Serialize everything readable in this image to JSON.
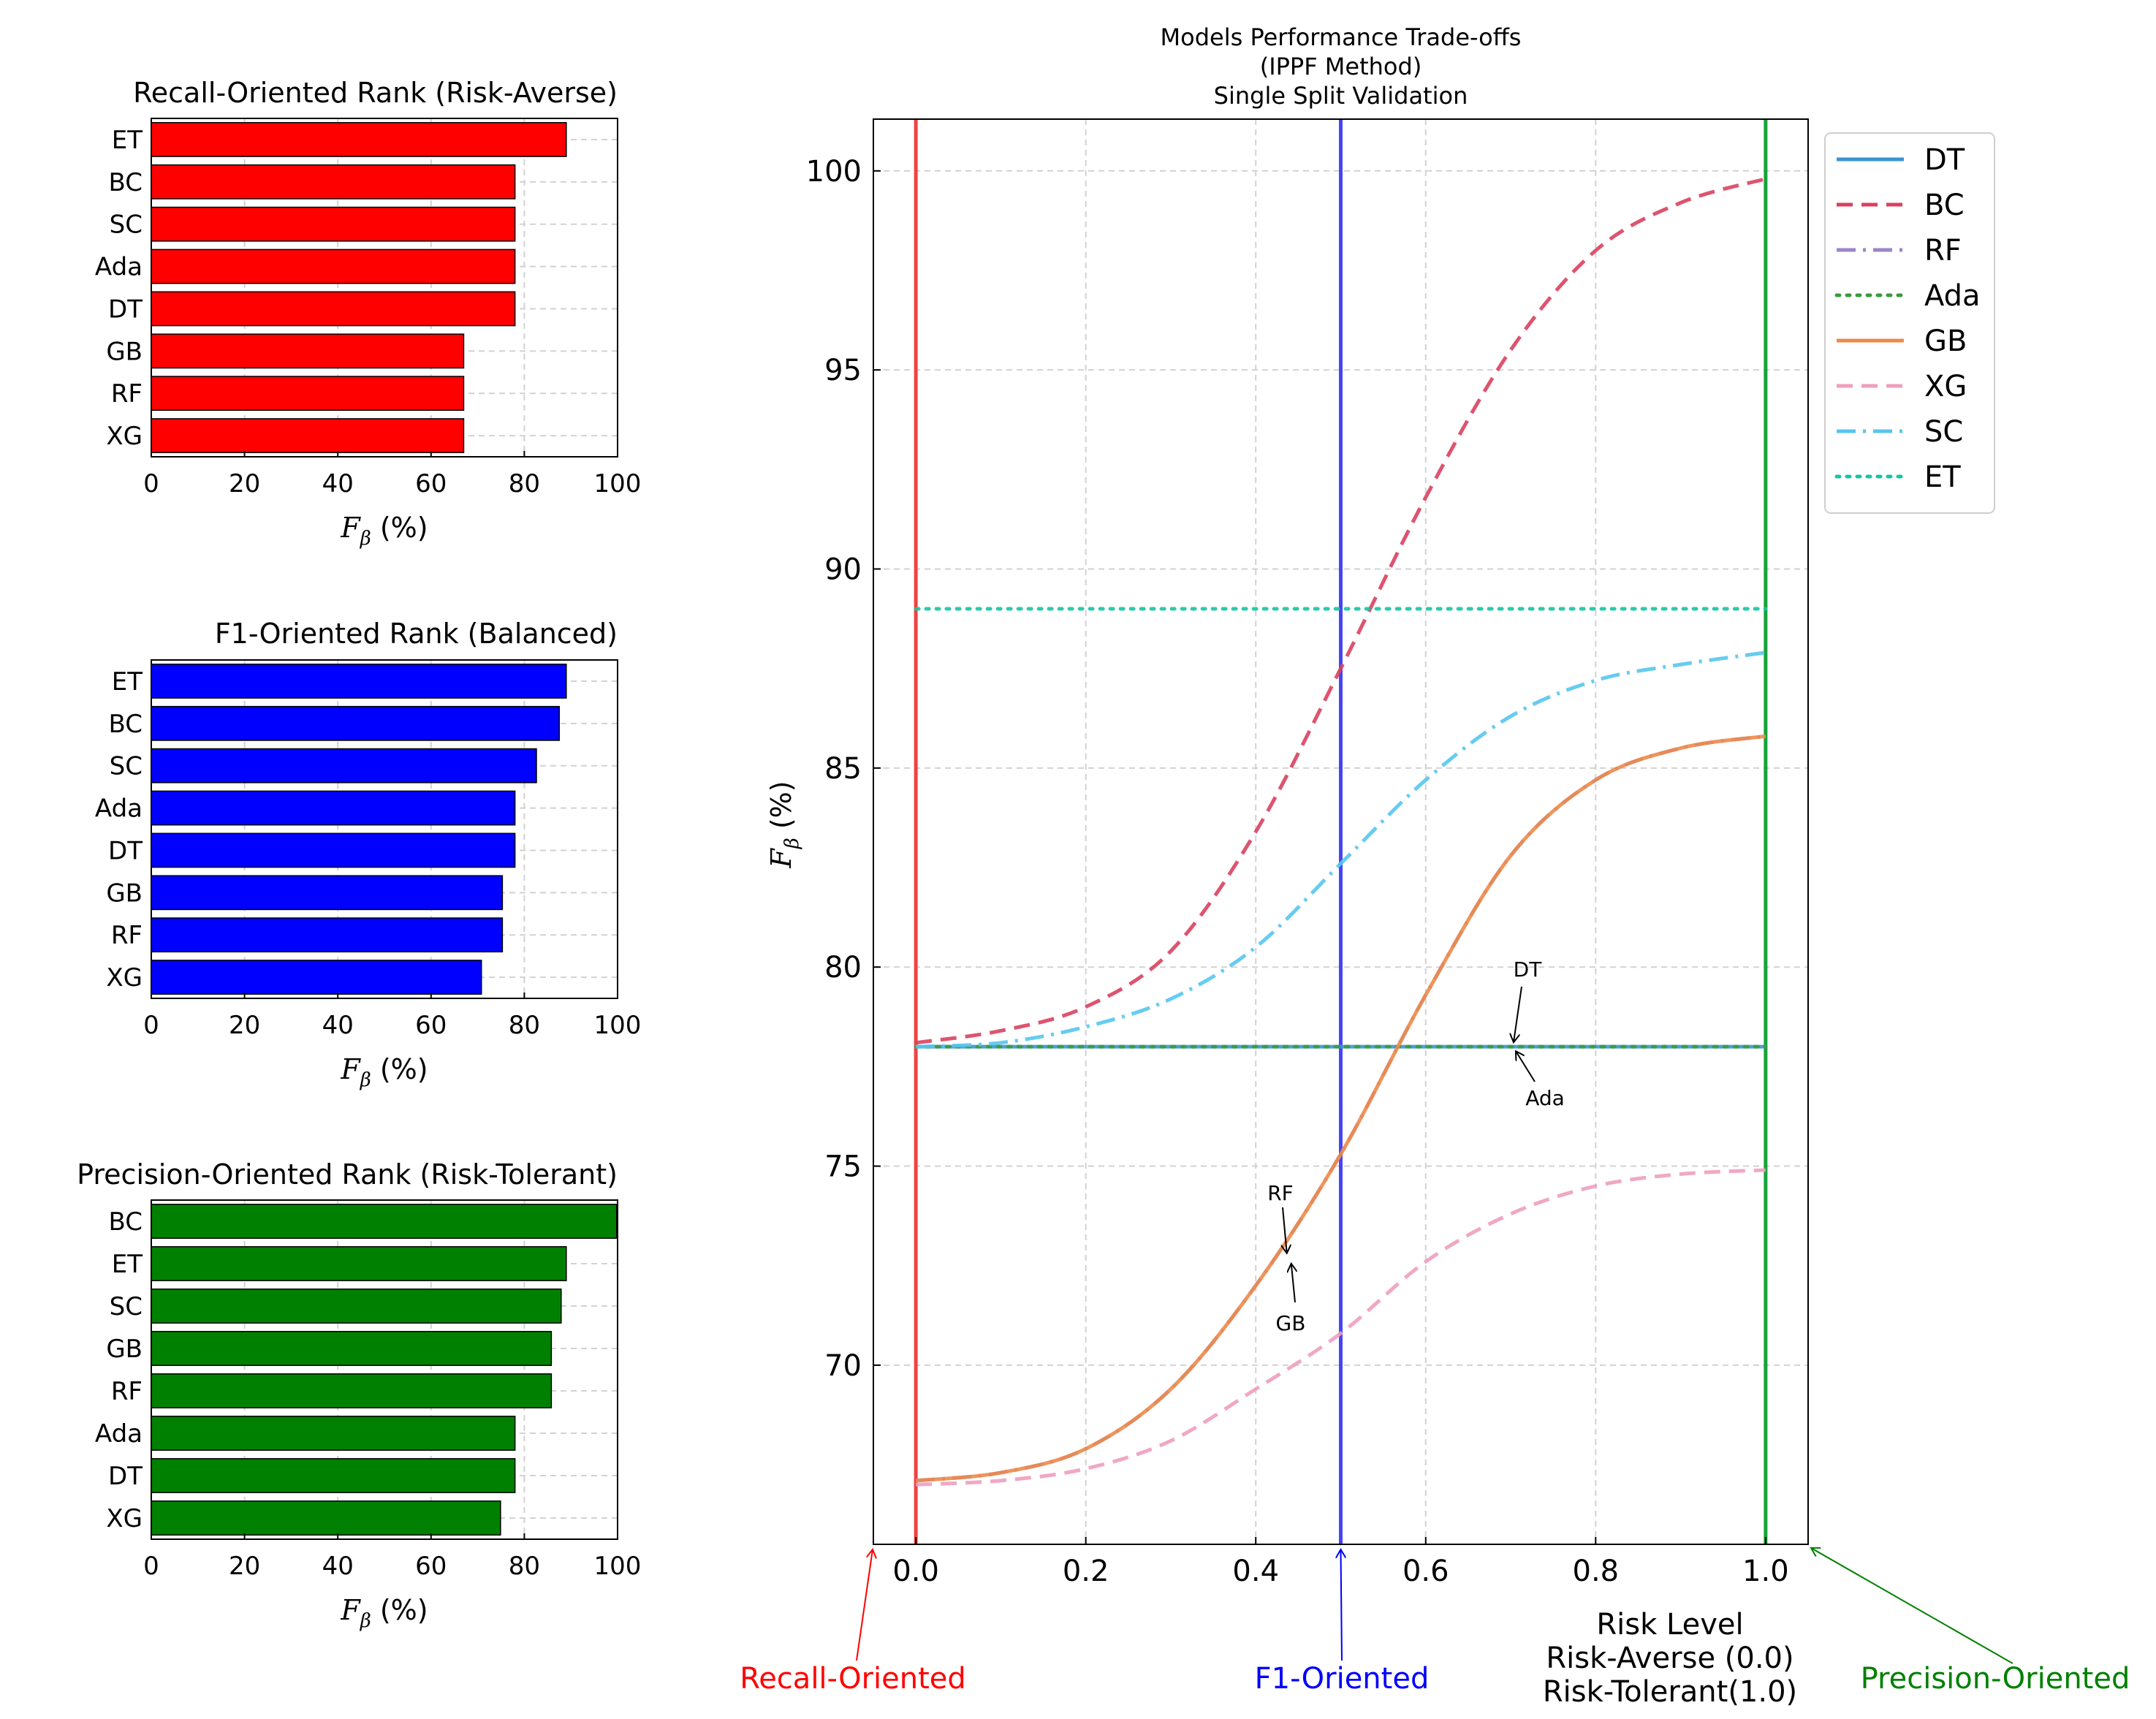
{
  "colors": {
    "recall": "#ff0000",
    "f1": "#0000ff",
    "precision": "#008000",
    "DT": "#3a95d0",
    "BC": "#d9415f",
    "RF": "#9a86c6",
    "Ada": "#3b9a3f",
    "GB": "#ed8a4a",
    "XG": "#ee9fbe",
    "SC": "#55c6ef",
    "ET": "#15c4a3",
    "vline_recall": "#f04242",
    "vline_f1": "#4545f5",
    "vline_precision": "#16a33a"
  },
  "chart_data": [
    {
      "type": "bar",
      "orientation": "horizontal",
      "title": "Recall-Oriented Rank (Risk-Averse)",
      "xlabel_var": "F",
      "xlabel_sub": "β",
      "xlabel_unit": " (%)",
      "xlim": [
        0,
        100
      ],
      "xticks": [
        "0",
        "20",
        "40",
        "60",
        "80",
        "100"
      ],
      "categories": [
        "ET",
        "BC",
        "SC",
        "Ada",
        "DT",
        "GB",
        "RF",
        "XG"
      ],
      "values": [
        89,
        78,
        78,
        78,
        78,
        67,
        67,
        67
      ],
      "color": "#ff0000"
    },
    {
      "type": "bar",
      "orientation": "horizontal",
      "title": "F1-Oriented Rank (Balanced)",
      "xlabel_var": "F",
      "xlabel_sub": "β",
      "xlabel_unit": " (%)",
      "xlim": [
        0,
        100
      ],
      "xticks": [
        "0",
        "20",
        "40",
        "60",
        "80",
        "100"
      ],
      "categories": [
        "ET",
        "BC",
        "SC",
        "Ada",
        "DT",
        "GB",
        "RF",
        "XG"
      ],
      "values": [
        89,
        87.5,
        82.6,
        78,
        78,
        75.3,
        75.3,
        70.8
      ],
      "color": "#0000ff"
    },
    {
      "type": "bar",
      "orientation": "horizontal",
      "title": "Precision-Oriented Rank (Risk-Tolerant)",
      "xlabel_var": "F",
      "xlabel_sub": "β",
      "xlabel_unit": " (%)",
      "xlim": [
        0,
        100
      ],
      "xticks": [
        "0",
        "20",
        "40",
        "60",
        "80",
        "100"
      ],
      "categories": [
        "BC",
        "ET",
        "SC",
        "GB",
        "RF",
        "Ada",
        "DT",
        "XG"
      ],
      "values": [
        99.8,
        89,
        87.9,
        85.8,
        85.8,
        78,
        78,
        74.9
      ],
      "color": "#008000"
    },
    {
      "type": "line",
      "title_lines": [
        "Models Performance Trade-offs",
        "(IPPF Method)",
        "Single Split Validation"
      ],
      "ylabel_var": "F",
      "ylabel_sub": "β",
      "ylabel_unit": " (%)",
      "xlabel_lines": [
        "Risk Level",
        "Risk-Averse (0.0)",
        "Risk-Tolerant(1.0)"
      ],
      "xlim": [
        -0.05,
        1.05
      ],
      "ylim": [
        65.5,
        101.3
      ],
      "xticks": [
        0,
        0.2,
        0.4,
        0.6,
        0.8,
        1.0
      ],
      "xtick_labels": [
        "0.0",
        "0.2",
        "0.4",
        "0.6",
        "0.8",
        "1.0"
      ],
      "yticks": [
        70,
        75,
        80,
        85,
        90,
        95,
        100
      ],
      "ytick_labels": [
        "70",
        "75",
        "80",
        "85",
        "90",
        "95",
        "100"
      ],
      "x": [
        0,
        0.1,
        0.2,
        0.3,
        0.4,
        0.5,
        0.6,
        0.7,
        0.8,
        0.9,
        1.0
      ],
      "series": [
        {
          "name": "DT",
          "style": "solid",
          "values": [
            78,
            78,
            78,
            78,
            78,
            78,
            78,
            78,
            78,
            78,
            78
          ]
        },
        {
          "name": "BC",
          "style": "dashed",
          "values": [
            78.1,
            78.4,
            79.0,
            80.4,
            83.4,
            87.5,
            91.8,
            95.5,
            98.0,
            99.2,
            99.8
          ]
        },
        {
          "name": "RF",
          "style": "dashdot",
          "values": [
            67.1,
            67.3,
            67.9,
            69.4,
            72.0,
            75.3,
            79.3,
            82.8,
            84.7,
            85.5,
            85.8
          ]
        },
        {
          "name": "Ada",
          "style": "dotted",
          "values": [
            78,
            78,
            78,
            78,
            78,
            78,
            78,
            78,
            78,
            78,
            78
          ]
        },
        {
          "name": "GB",
          "style": "solid",
          "values": [
            67.1,
            67.3,
            67.9,
            69.4,
            72.0,
            75.3,
            79.3,
            82.8,
            84.7,
            85.5,
            85.8
          ]
        },
        {
          "name": "XG",
          "style": "dashed",
          "values": [
            67.0,
            67.1,
            67.4,
            68.1,
            69.4,
            70.8,
            72.6,
            73.8,
            74.5,
            74.8,
            74.9
          ]
        },
        {
          "name": "SC",
          "style": "dashdot",
          "values": [
            78.0,
            78.1,
            78.5,
            79.2,
            80.5,
            82.6,
            84.7,
            86.3,
            87.2,
            87.6,
            87.9
          ]
        },
        {
          "name": "ET",
          "style": "dotted",
          "values": [
            89,
            89,
            89,
            89,
            89,
            89,
            89,
            89,
            89,
            89,
            89
          ]
        }
      ],
      "legend_position": "upper-right, outside plot",
      "vertical_lines": [
        {
          "x": 0.0,
          "name": "Recall-Oriented"
        },
        {
          "x": 0.5,
          "name": "F1-Oriented"
        },
        {
          "x": 1.0,
          "name": "Precision-Oriented"
        }
      ],
      "annotations": [
        {
          "text": "DT",
          "x": 0.7,
          "y": 78.0
        },
        {
          "text": "Ada",
          "x": 0.7,
          "y": 78.0
        },
        {
          "text": "RF",
          "x": 0.44,
          "y": 72.7
        },
        {
          "text": "GB",
          "x": 0.44,
          "y": 72.7
        }
      ],
      "bottom_labels": {
        "recall": "Recall-Oriented",
        "f1": "F1-Oriented",
        "precision": "Precision-Oriented"
      }
    }
  ]
}
